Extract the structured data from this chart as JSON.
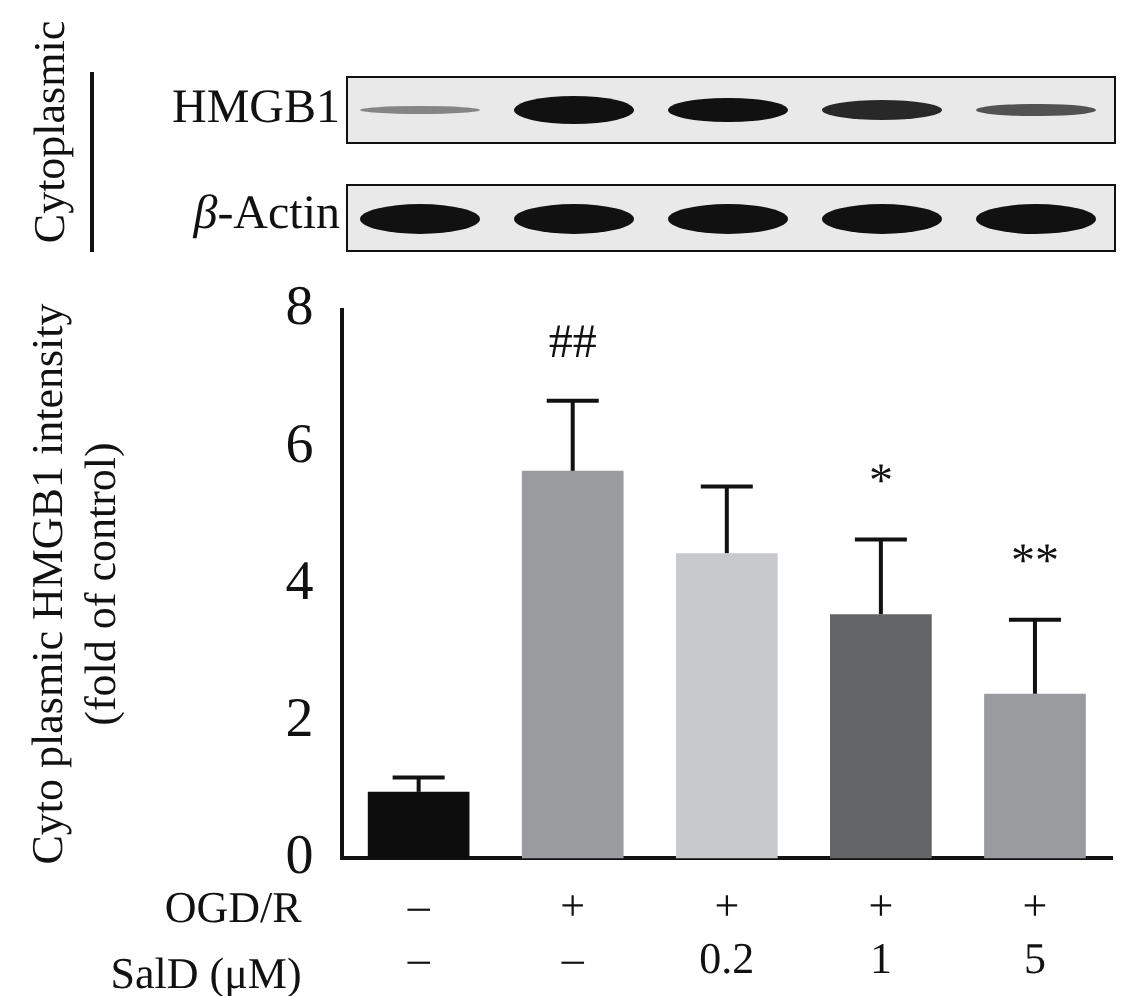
{
  "chart_data": {
    "type": "bar",
    "ylabel": "Cyto plasmic HMGB1 intensity\n(fold of control)",
    "categories": [
      "–\n–",
      "+\n–",
      "+\n0.2",
      "+\n1",
      "+\n5"
    ],
    "values": [
      0.97,
      5.65,
      4.45,
      3.56,
      2.4
    ],
    "colors": [
      "#0d0d0d",
      "#9a9b9f",
      "#c8c9cb",
      "#636466",
      "#9a9b9f"
    ],
    "errors": [
      [
        0.97,
        1.18
      ],
      [
        5.65,
        6.67
      ],
      [
        4.45,
        5.42
      ],
      [
        3.56,
        4.65
      ],
      [
        2.4,
        3.48
      ]
    ],
    "ylim": [
      0,
      8
    ],
    "yticks": [
      0,
      2,
      4,
      6,
      8
    ],
    "grid": false,
    "legend": false,
    "annotations": [
      "Cytoplasmic",
      "HMGB1",
      "β-Actin",
      "OGD/R",
      "SalD (μM)",
      "##",
      "*",
      "**"
    ]
  }
}
